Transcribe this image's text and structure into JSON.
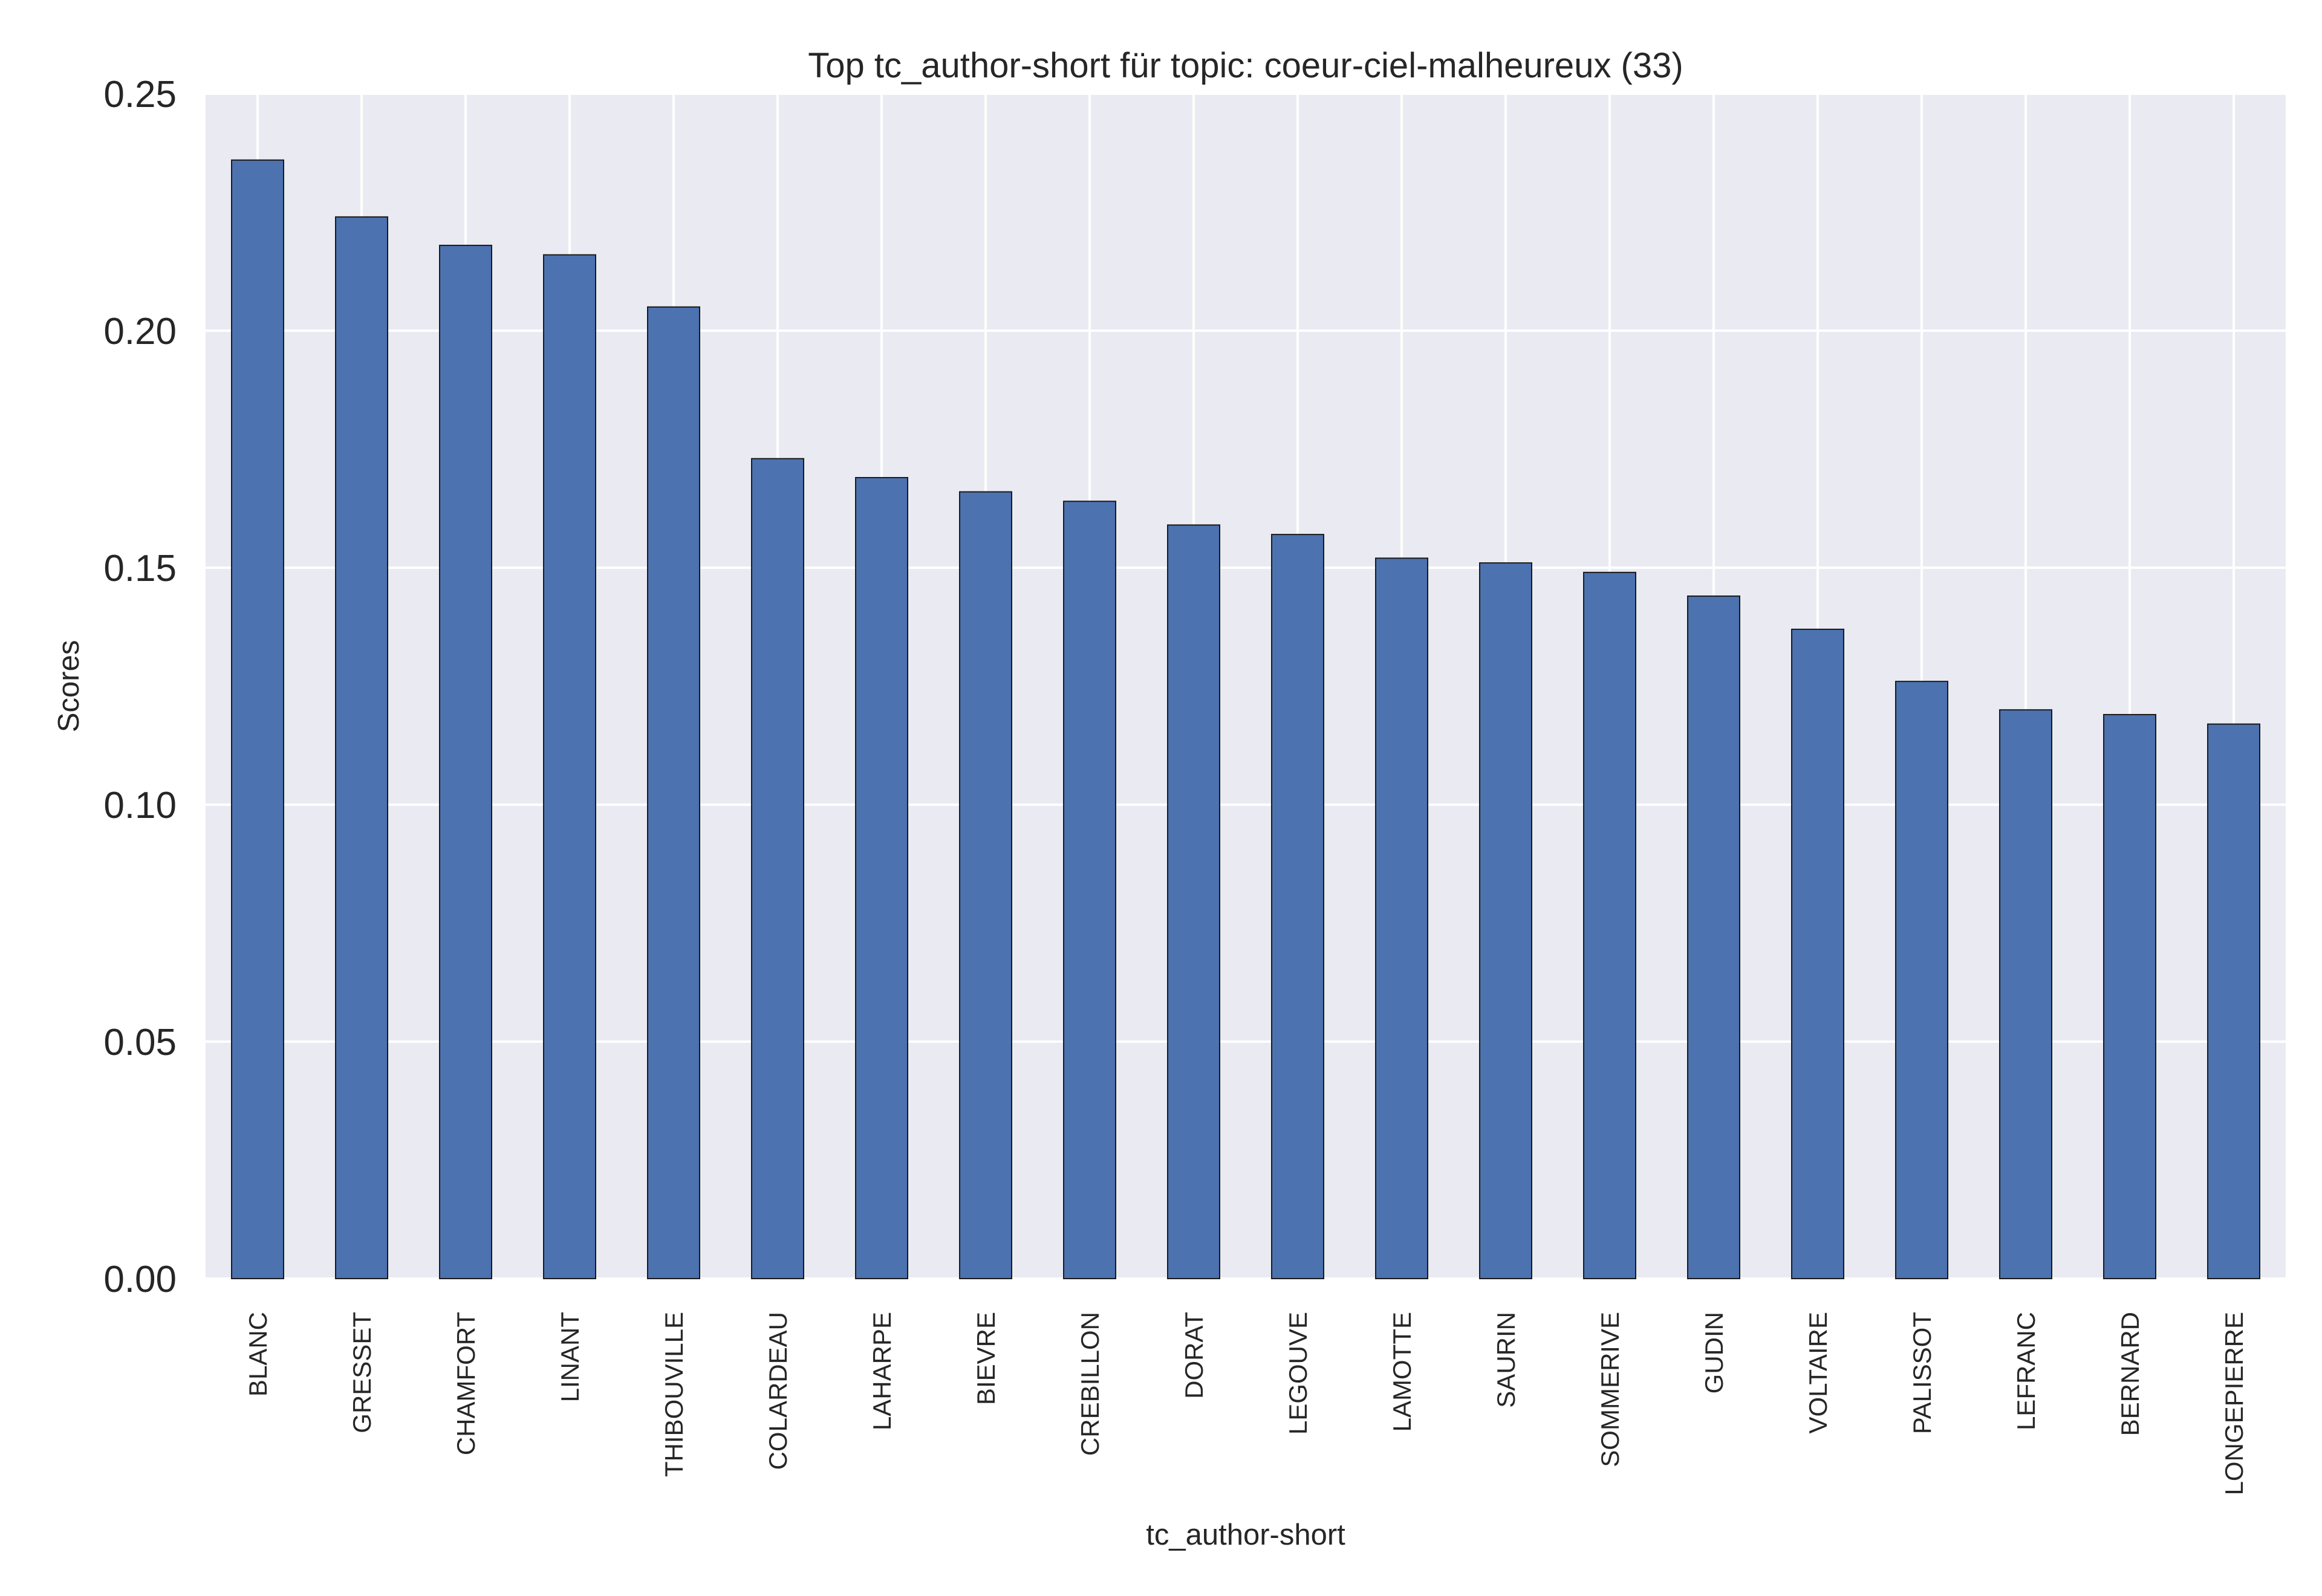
{
  "chart_data": {
    "type": "bar",
    "title": "Top tc_author-short für topic: coeur-ciel-malheureux (33)",
    "xlabel": "tc_author-short",
    "ylabel": "Scores",
    "ylim": [
      0,
      0.25
    ],
    "yticks": [
      "0.00",
      "0.05",
      "0.10",
      "0.15",
      "0.20",
      "0.25"
    ],
    "grid": true,
    "bar_color": "#4c72b0",
    "background_color": "#eaeaf2",
    "grid_color": "#ffffff",
    "categories": [
      "BLANC",
      "GRESSET",
      "CHAMFORT",
      "LINANT",
      "THIBOUVILLE",
      "COLARDEAU",
      "LAHARPE",
      "BIEVRE",
      "CREBILLON",
      "DORAT",
      "LEGOUVE",
      "LAMOTTE",
      "SAURIN",
      "SOMMERIVE",
      "GUDIN",
      "VOLTAIRE",
      "PALISSOT",
      "LEFRANC",
      "BERNARD",
      "LONGEPIERRE"
    ],
    "values": [
      0.236,
      0.224,
      0.218,
      0.216,
      0.205,
      0.173,
      0.169,
      0.166,
      0.164,
      0.159,
      0.157,
      0.152,
      0.151,
      0.149,
      0.144,
      0.137,
      0.126,
      0.12,
      0.119,
      0.117
    ]
  }
}
